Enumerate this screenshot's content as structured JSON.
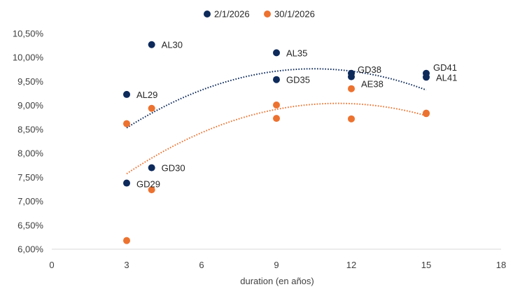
{
  "chart_data": {
    "type": "scatter",
    "title": "",
    "xlabel": "duration (en años)",
    "ylabel": "",
    "xlim": [
      0,
      18
    ],
    "ylim": [
      6.0,
      10.5
    ],
    "x_ticks": [
      0,
      3,
      6,
      9,
      12,
      15,
      18
    ],
    "x_tick_labels": [
      "0",
      "3",
      "6",
      "9",
      "12",
      "15",
      "18"
    ],
    "y_ticks": [
      6.0,
      6.5,
      7.0,
      7.5,
      8.0,
      8.5,
      9.0,
      9.5,
      10.0,
      10.5
    ],
    "y_tick_labels": [
      "6,00%",
      "6,50%",
      "7,00%",
      "7,50%",
      "8,00%",
      "8,50%",
      "9,00%",
      "9,50%",
      "10,00%",
      "10,50%"
    ],
    "grid": false,
    "legend_position": "top-center",
    "series": [
      {
        "name": "2/1/2026",
        "color": "#0d2a5b",
        "trendline": "dotted polynomial",
        "points": [
          {
            "x": 3,
            "y": 9.23,
            "label": "AL29"
          },
          {
            "x": 3,
            "y": 7.38,
            "label": "GD29"
          },
          {
            "x": 4,
            "y": 10.27,
            "label": "AL30"
          },
          {
            "x": 4,
            "y": 7.7,
            "label": "GD30"
          },
          {
            "x": 9,
            "y": 10.1,
            "label": "AL35"
          },
          {
            "x": 9,
            "y": 9.54,
            "label": "GD35"
          },
          {
            "x": 12,
            "y": 9.67,
            "label": "GD38"
          },
          {
            "x": 12,
            "y": 9.6,
            "label": ""
          },
          {
            "x": 15,
            "y": 9.67,
            "label": "GD41"
          },
          {
            "x": 15,
            "y": 9.59,
            "label": "AL41"
          }
        ]
      },
      {
        "name": "30/1/2026",
        "color": "#ec7230",
        "trendline": "dotted polynomial",
        "points": [
          {
            "x": 3,
            "y": 8.62,
            "label": ""
          },
          {
            "x": 3,
            "y": 6.18,
            "label": ""
          },
          {
            "x": 4,
            "y": 8.94,
            "label": ""
          },
          {
            "x": 4,
            "y": 7.24,
            "label": ""
          },
          {
            "x": 9,
            "y": 9.01,
            "label": ""
          },
          {
            "x": 9,
            "y": 8.73,
            "label": ""
          },
          {
            "x": 12,
            "y": 9.35,
            "label": "AE38"
          },
          {
            "x": 12,
            "y": 8.72,
            "label": ""
          },
          {
            "x": 15,
            "y": 8.84,
            "label": ""
          },
          {
            "x": 15,
            "y": 8.83,
            "label": ""
          }
        ]
      }
    ],
    "trendlines": [
      {
        "series": "2/1/2026",
        "coef": [
          7.35,
          0.46,
          -0.0219
        ]
      },
      {
        "series": "30/1/2026",
        "coef": [
          6.35,
          0.47,
          -0.0205
        ]
      }
    ]
  }
}
